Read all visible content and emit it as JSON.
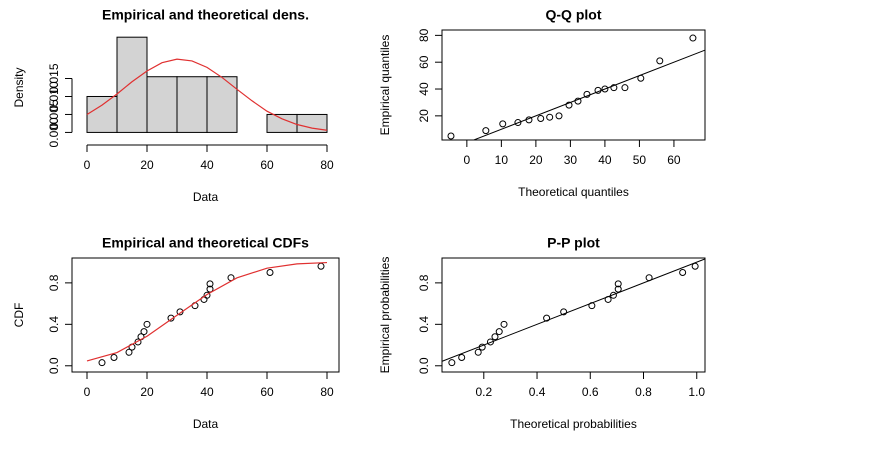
{
  "chart_data": [
    {
      "type": "histogram",
      "title": "Empirical and theoretical dens.",
      "xlabel": "Data",
      "ylabel": "Density",
      "frame": false,
      "bins": [
        0,
        10,
        20,
        30,
        40,
        50,
        60,
        70,
        80
      ],
      "values": [
        0.01,
        0.0265,
        0.0155,
        0.0155,
        0.0155,
        0,
        0.005,
        0.005
      ],
      "color": "#d3d3d3",
      "series": [
        {
          "mode": "line",
          "color": "#e03030",
          "x": [
            0,
            5,
            10,
            15,
            20,
            25,
            30,
            35,
            40,
            45,
            50,
            55,
            60,
            65,
            70,
            75,
            80
          ],
          "values": [
            0.005,
            0.0076,
            0.0107,
            0.0141,
            0.0171,
            0.0194,
            0.0204,
            0.0199,
            0.0181,
            0.0153,
            0.012,
            0.0088,
            0.0059,
            0.0038,
            0.0022,
            0.0012,
            0.0006
          ]
        }
      ],
      "xlim": [
        -5,
        84
      ],
      "ylim": [
        -0.0035,
        0.0285
      ],
      "xticks": [
        0,
        20,
        40,
        60,
        80
      ],
      "yticks": [
        {
          "value": 0,
          "label": "0.000"
        },
        {
          "value": 0.005,
          "label": "0.005"
        },
        {
          "value": 0.01,
          "label": "0.010"
        },
        {
          "value": 0.015,
          "label": "0.015"
        }
      ]
    },
    {
      "type": "scatter",
      "title": "Q-Q plot",
      "xlabel": "Theoretical quantiles",
      "ylabel": "Empirical quantiles",
      "frame": true,
      "diagonal": true,
      "series": [
        {
          "mode": "points",
          "color": "#000000",
          "x": [
            -4.6,
            5.5,
            10.4,
            14.8,
            18,
            21.4,
            24,
            26.7,
            29.6,
            32.2,
            34.8,
            38,
            40,
            42.6,
            45.8,
            50.4,
            55.9,
            65.5
          ],
          "values": [
            5,
            9,
            14,
            15,
            17,
            18,
            19,
            20,
            28,
            31,
            36,
            39,
            40,
            41,
            41,
            48,
            61,
            78
          ]
        }
      ],
      "xlim": [
        -7.2,
        69
      ],
      "ylim": [
        2,
        84
      ],
      "xticks": [
        0,
        10,
        20,
        30,
        40,
        50,
        60
      ],
      "yticks": [
        20,
        40,
        60,
        80
      ]
    },
    {
      "type": "scatter",
      "title": "Empirical and theoretical CDFs",
      "xlabel": "Data",
      "ylabel": "CDF",
      "frame": true,
      "diagonal": false,
      "series": [
        {
          "mode": "points",
          "color": "#000000",
          "x": [
            5,
            9,
            14,
            15,
            17,
            18,
            19,
            20,
            28,
            31,
            36,
            39,
            40,
            41,
            41,
            48,
            61,
            78
          ],
          "values": [
            0.03,
            0.08,
            0.13,
            0.18,
            0.23,
            0.28,
            0.33,
            0.4,
            0.46,
            0.52,
            0.58,
            0.64,
            0.68,
            0.74,
            0.79,
            0.85,
            0.9,
            0.96
          ]
        },
        {
          "mode": "line",
          "color": "#e03030",
          "x": [
            0,
            10,
            20,
            30,
            40,
            50,
            60,
            70,
            80
          ],
          "values": [
            0.047,
            0.128,
            0.285,
            0.488,
            0.688,
            0.849,
            0.942,
            0.983,
            0.996
          ]
        }
      ],
      "xlim": [
        -5,
        84
      ],
      "ylim": [
        -0.06,
        1.04
      ],
      "xticks": [
        0,
        20,
        40,
        60,
        80
      ],
      "yticks": [
        {
          "value": 0,
          "label": "0.0"
        },
        0.4,
        0.8
      ]
    },
    {
      "type": "scatter",
      "title": "P-P plot",
      "xlabel": "Theoretical probabilities",
      "ylabel": "Empirical probabilities",
      "frame": true,
      "diagonal": true,
      "series": [
        {
          "mode": "points",
          "color": "#000000",
          "x": [
            0.08,
            0.117,
            0.179,
            0.194,
            0.225,
            0.242,
            0.258,
            0.276,
            0.436,
            0.5,
            0.606,
            0.667,
            0.687,
            0.705,
            0.705,
            0.821,
            0.947,
            0.994
          ],
          "values": [
            0.03,
            0.08,
            0.13,
            0.18,
            0.23,
            0.28,
            0.33,
            0.4,
            0.46,
            0.52,
            0.58,
            0.64,
            0.68,
            0.74,
            0.79,
            0.85,
            0.9,
            0.96
          ]
        }
      ],
      "xlim": [
        0.043,
        1.031
      ],
      "ylim": [
        -0.06,
        1.04
      ],
      "xticks": [
        0.2,
        0.4,
        0.6,
        0.8,
        {
          "value": 1,
          "label": "1.0"
        }
      ],
      "yticks": [
        {
          "value": 0,
          "label": "0.0"
        },
        0.4,
        0.8
      ]
    }
  ]
}
